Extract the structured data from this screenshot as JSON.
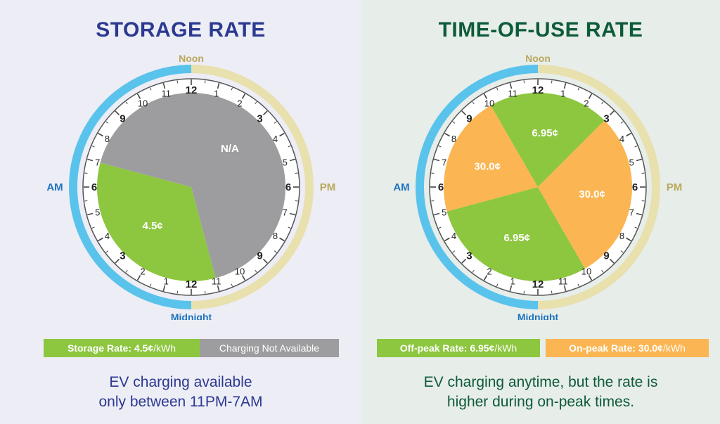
{
  "colors": {
    "am_ring": "#5ac3ec",
    "pm_ring": "#e8e0ad",
    "off_peak_green": "#8dc63f",
    "on_peak_orange": "#fbb552",
    "na_gray": "#9d9d9f",
    "noon_color": "#b9a85c",
    "am_color": "#1e73be"
  },
  "left": {
    "title": "STORAGE RATE",
    "noon": "Noon",
    "midnight": "Midnight",
    "am": "AM",
    "pm": "PM",
    "segments": [
      {
        "label": "4.5¢",
        "from_hour": 23,
        "to_hour": 7,
        "color": "#8dc63f"
      },
      {
        "label": "N/A",
        "from_hour": 7,
        "to_hour": 23,
        "color": "#9d9d9f"
      }
    ],
    "legend": [
      {
        "bold": "Storage Rate: 4.5¢",
        "rest": "/kWh",
        "color": "#8dc63f"
      },
      {
        "bold": "",
        "rest": "Charging Not Available",
        "color": "#9d9d9f"
      }
    ],
    "caption_line1": "EV charging available",
    "caption_line2": "only between 11PM-7AM"
  },
  "right": {
    "title": "TIME-OF-USE RATE",
    "noon": "Noon",
    "midnight": "Midnight",
    "am": "AM",
    "pm": "PM",
    "segments": [
      {
        "label": "6.95¢",
        "from_hour": 22,
        "to_hour": 5,
        "color": "#8dc63f"
      },
      {
        "label": "30.0¢",
        "from_hour": 5,
        "to_hour": 10,
        "color": "#fbb552"
      },
      {
        "label": "6.95¢",
        "from_hour": 10,
        "to_hour": 15,
        "color": "#8dc63f"
      },
      {
        "label": "30.0¢",
        "from_hour": 15,
        "to_hour": 22,
        "color": "#fbb552"
      }
    ],
    "legend": [
      {
        "bold": "Off-peak Rate:  6.95¢",
        "rest": "/kWh",
        "color": "#8dc63f"
      },
      {
        "bold": "On-peak Rate:  30.0¢",
        "rest": "/kWh",
        "color": "#fbb552"
      }
    ],
    "caption_line1": "EV charging anytime, but the rate is",
    "caption_line2": "higher during on-peak times."
  },
  "am_numbers": [
    "12",
    "1",
    "2",
    "3",
    "4",
    "5",
    "6",
    "7",
    "8",
    "9",
    "10",
    "11"
  ],
  "pm_numbers": [
    "12",
    "1",
    "2",
    "3",
    "4",
    "5",
    "6",
    "7",
    "8",
    "9",
    "10",
    "11"
  ]
}
